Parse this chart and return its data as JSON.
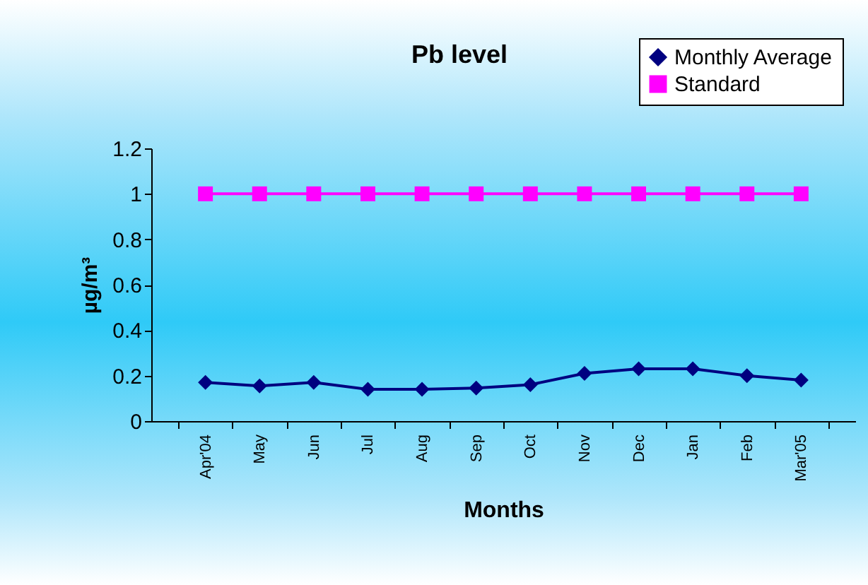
{
  "chart_data": {
    "type": "line",
    "title": "Pb level",
    "xlabel": "Months",
    "ylabel": "µg/m³",
    "categories": [
      "Apr'04",
      "May",
      "Jun",
      "Jul",
      "Aug",
      "Sep",
      "Oct",
      "Nov",
      "Dec",
      "Jan",
      "Feb",
      "Mar'05"
    ],
    "series": [
      {
        "name": "Monthly Average",
        "color": "#000080",
        "marker": "diamond",
        "values": [
          0.17,
          0.155,
          0.17,
          0.14,
          0.14,
          0.145,
          0.16,
          0.21,
          0.23,
          0.23,
          0.2,
          0.18
        ]
      },
      {
        "name": "Standard",
        "color": "#ff00ff",
        "marker": "square",
        "values": [
          1,
          1,
          1,
          1,
          1,
          1,
          1,
          1,
          1,
          1,
          1,
          1
        ]
      }
    ],
    "ylim": [
      0,
      1.2
    ],
    "yticks": [
      0,
      0.2,
      0.4,
      0.6,
      0.8,
      1,
      1.2
    ],
    "grid": false,
    "legend": "top right"
  }
}
